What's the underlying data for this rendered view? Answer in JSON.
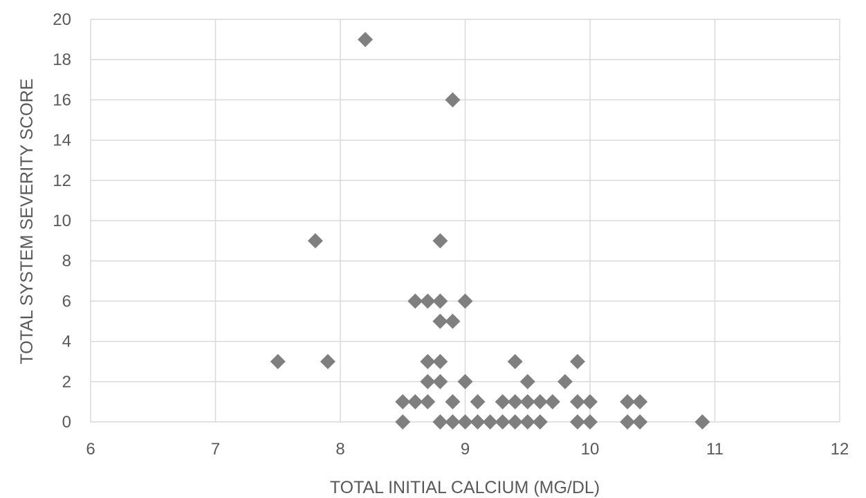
{
  "chart_data": {
    "type": "scatter",
    "title": "",
    "xlabel": "TOTAL INITIAL CALCIUM (MG/DL)",
    "ylabel": "TOTAL SYSTEM SEVERITY SCORE",
    "xlim": [
      6,
      12
    ],
    "ylim": [
      0,
      20
    ],
    "xticks": [
      6,
      7,
      8,
      9,
      10,
      11,
      12
    ],
    "yticks": [
      0,
      2,
      4,
      6,
      8,
      10,
      12,
      14,
      16,
      18,
      20
    ],
    "grid": true,
    "legend": "none",
    "marker": "diamond",
    "marker_color": "#7f7f7f",
    "series": [
      {
        "points": [
          {
            "x": 7.5,
            "y": 3
          },
          {
            "x": 7.8,
            "y": 9
          },
          {
            "x": 7.9,
            "y": 3
          },
          {
            "x": 8.2,
            "y": 19
          },
          {
            "x": 8.5,
            "y": 1
          },
          {
            "x": 8.5,
            "y": 0
          },
          {
            "x": 8.6,
            "y": 1
          },
          {
            "x": 8.6,
            "y": 6
          },
          {
            "x": 8.7,
            "y": 6
          },
          {
            "x": 8.7,
            "y": 3
          },
          {
            "x": 8.7,
            "y": 2
          },
          {
            "x": 8.7,
            "y": 1
          },
          {
            "x": 8.8,
            "y": 9
          },
          {
            "x": 8.8,
            "y": 6
          },
          {
            "x": 8.8,
            "y": 5
          },
          {
            "x": 8.8,
            "y": 3
          },
          {
            "x": 8.8,
            "y": 2
          },
          {
            "x": 8.8,
            "y": 0
          },
          {
            "x": 8.9,
            "y": 16
          },
          {
            "x": 8.9,
            "y": 5
          },
          {
            "x": 8.9,
            "y": 1
          },
          {
            "x": 8.9,
            "y": 0
          },
          {
            "x": 9.0,
            "y": 6
          },
          {
            "x": 9.0,
            "y": 2
          },
          {
            "x": 9.0,
            "y": 0
          },
          {
            "x": 9.1,
            "y": 1
          },
          {
            "x": 9.1,
            "y": 0
          },
          {
            "x": 9.2,
            "y": 0
          },
          {
            "x": 9.3,
            "y": 1
          },
          {
            "x": 9.3,
            "y": 0
          },
          {
            "x": 9.4,
            "y": 3
          },
          {
            "x": 9.4,
            "y": 1
          },
          {
            "x": 9.4,
            "y": 0
          },
          {
            "x": 9.5,
            "y": 2
          },
          {
            "x": 9.5,
            "y": 1
          },
          {
            "x": 9.5,
            "y": 0
          },
          {
            "x": 9.6,
            "y": 1
          },
          {
            "x": 9.6,
            "y": 0
          },
          {
            "x": 9.7,
            "y": 1
          },
          {
            "x": 9.8,
            "y": 2
          },
          {
            "x": 9.9,
            "y": 3
          },
          {
            "x": 9.9,
            "y": 1
          },
          {
            "x": 9.9,
            "y": 0
          },
          {
            "x": 10.0,
            "y": 1
          },
          {
            "x": 10.0,
            "y": 0
          },
          {
            "x": 10.3,
            "y": 1
          },
          {
            "x": 10.3,
            "y": 0
          },
          {
            "x": 10.4,
            "y": 1
          },
          {
            "x": 10.4,
            "y": 0
          },
          {
            "x": 10.9,
            "y": 0
          }
        ]
      }
    ]
  }
}
